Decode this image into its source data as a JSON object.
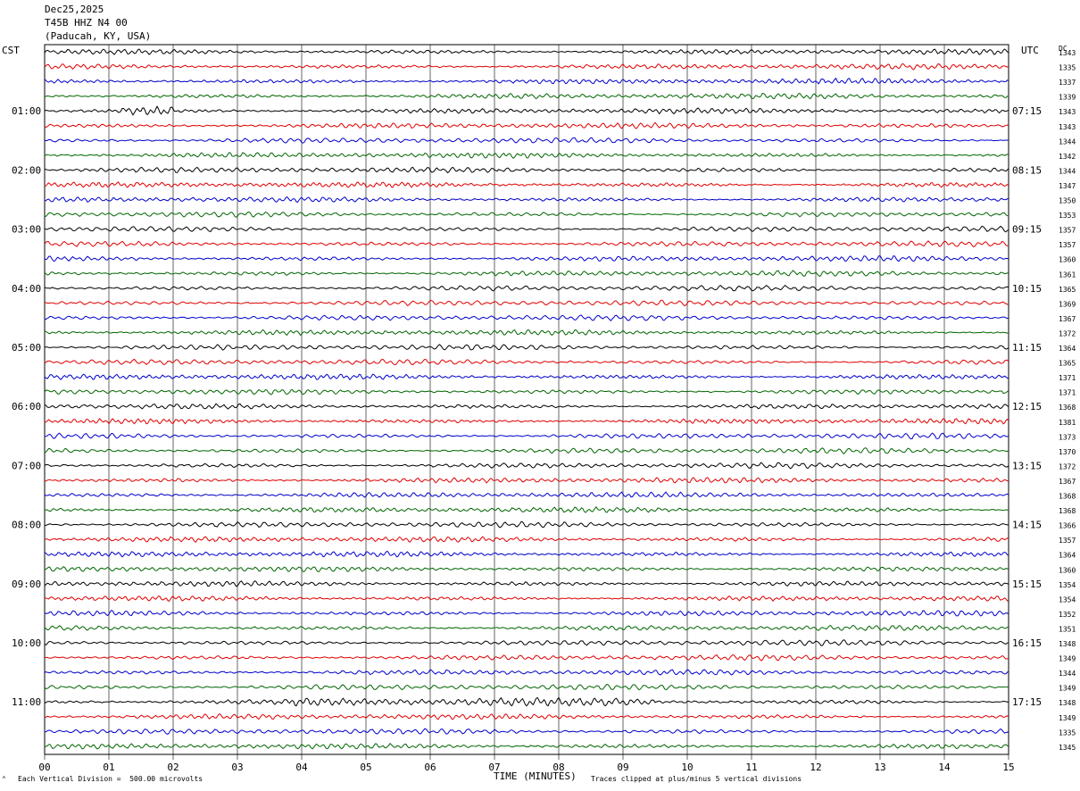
{
  "header": {
    "date": "Dec25,2025",
    "station": "T45B HHZ N4 00",
    "location": "(Paducah, KY, USA)"
  },
  "left_axis_title": "CST",
  "right_axis_title": "UTC",
  "dc_title": "DC",
  "footer": {
    "scale_note": "Each Vertical Division =  500.00 microvolts",
    "xlabel": "TIME (MINUTES)",
    "clip_note": "Traces clipped at plus/minus 5 vertical divisions"
  },
  "colors": {
    "trace_cycle": [
      "#000000",
      "#e00000",
      "#0000cc",
      "#006600"
    ],
    "grid": "#000000"
  },
  "chart_data": {
    "type": "line",
    "title": "",
    "xlabel": "TIME (MINUTES)",
    "xlim": [
      0,
      15
    ],
    "x_ticks": [
      "00",
      "01",
      "02",
      "03",
      "04",
      "05",
      "06",
      "07",
      "08",
      "09",
      "10",
      "11",
      "12",
      "13",
      "14",
      "15"
    ],
    "trace_count": 48,
    "minutes_per_trace": 15,
    "left_hour_labels": [
      "01:00",
      "02:00",
      "03:00",
      "04:00",
      "05:00",
      "06:00",
      "07:00",
      "08:00",
      "09:00",
      "10:00",
      "11:00"
    ],
    "right_hour_labels": [
      "07:15",
      "08:15",
      "09:15",
      "10:15",
      "11:15",
      "12:15",
      "13:15",
      "14:15",
      "15:15",
      "16:15",
      "17:15"
    ],
    "dc_offsets": [
      1343,
      1335,
      1337,
      1339,
      1343,
      1343,
      1344,
      1342,
      1344,
      1347,
      1350,
      1353,
      1357,
      1357,
      1360,
      1361,
      1365,
      1369,
      1367,
      1372,
      1364,
      1365,
      1371,
      1371,
      1368,
      1381,
      1373,
      1370,
      1372,
      1367,
      1368,
      1368,
      1366,
      1357,
      1364,
      1360,
      1354,
      1354,
      1352,
      1351,
      1348,
      1349,
      1344,
      1349,
      1348,
      1349,
      1335,
      1345
    ],
    "events": [
      {
        "trace": 4,
        "start_min": 1.2,
        "end_min": 2.0,
        "amp": 2.5
      },
      {
        "trace": 44,
        "start_min": 3.8,
        "end_min": 9.5,
        "amp": 1.6
      }
    ]
  }
}
